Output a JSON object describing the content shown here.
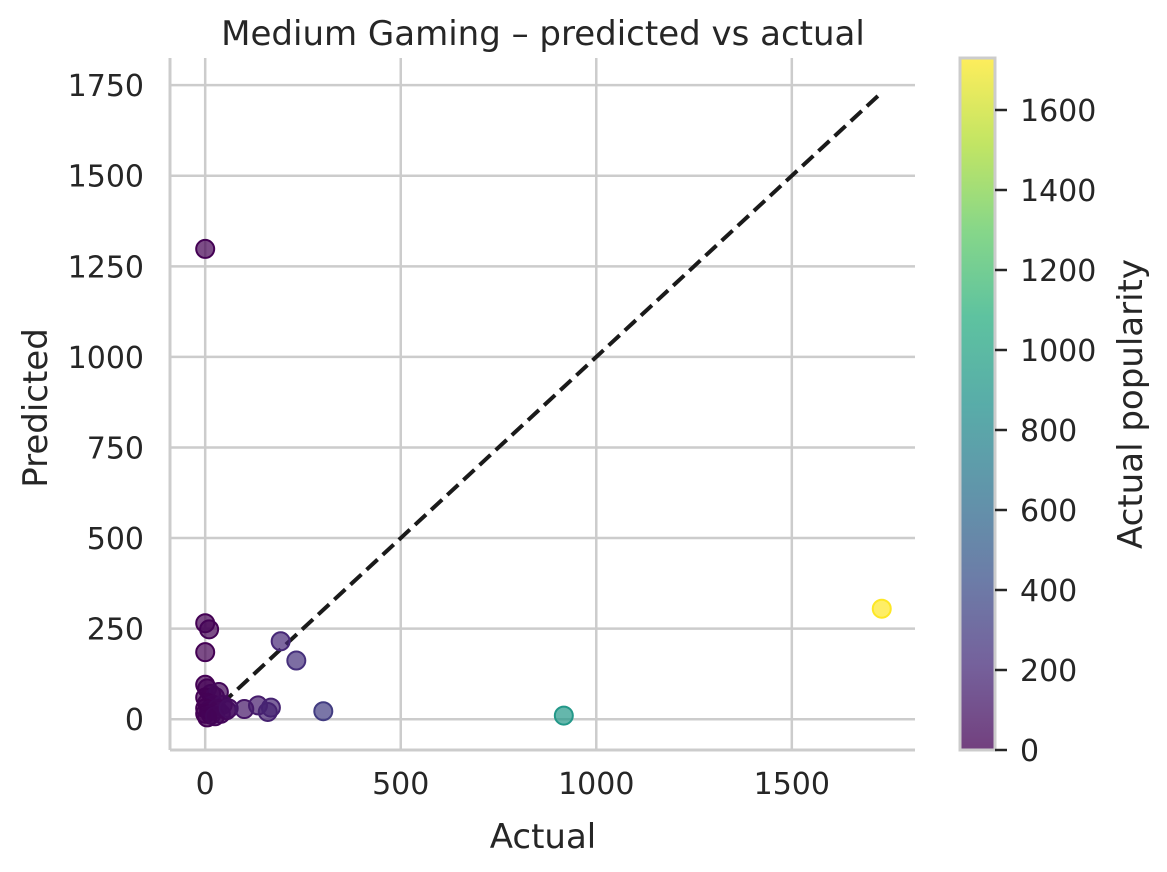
{
  "chart_data": {
    "type": "scatter",
    "title": "Medium Gaming – predicted vs actual",
    "xlabel": "Actual",
    "ylabel": "Predicted",
    "xlim": [
      -90,
      1815
    ],
    "ylim": [
      -85,
      1825
    ],
    "xticks": [
      0,
      500,
      1000,
      1500
    ],
    "yticks": [
      0,
      250,
      500,
      750,
      1000,
      1250,
      1500,
      1750
    ],
    "grid": true,
    "reference_line": {
      "style": "dashed",
      "color": "#1a1a1a",
      "from": [
        0,
        0
      ],
      "to": [
        1730,
        1730
      ]
    },
    "colorbar": {
      "label": "Actual popularity",
      "colormap": "viridis",
      "range": [
        0,
        1730
      ],
      "ticks": [
        0,
        200,
        400,
        600,
        800,
        1000,
        1200,
        1400,
        1600
      ]
    },
    "points": [
      {
        "x": 0,
        "y": 1298
      },
      {
        "x": 0,
        "y": 265
      },
      {
        "x": 10,
        "y": 248
      },
      {
        "x": 0,
        "y": 185
      },
      {
        "x": 0,
        "y": 95
      },
      {
        "x": 5,
        "y": 85
      },
      {
        "x": 15,
        "y": 70
      },
      {
        "x": 0,
        "y": 60
      },
      {
        "x": 25,
        "y": 62
      },
      {
        "x": 35,
        "y": 75
      },
      {
        "x": 5,
        "y": 45
      },
      {
        "x": 20,
        "y": 40
      },
      {
        "x": 45,
        "y": 40
      },
      {
        "x": 0,
        "y": 30
      },
      {
        "x": 10,
        "y": 25
      },
      {
        "x": 30,
        "y": 28
      },
      {
        "x": 55,
        "y": 25
      },
      {
        "x": 0,
        "y": 15
      },
      {
        "x": 15,
        "y": 12
      },
      {
        "x": 40,
        "y": 15
      },
      {
        "x": 5,
        "y": 5
      },
      {
        "x": 25,
        "y": 8
      },
      {
        "x": 60,
        "y": 30
      },
      {
        "x": 100,
        "y": 28
      },
      {
        "x": 135,
        "y": 38
      },
      {
        "x": 160,
        "y": 20
      },
      {
        "x": 168,
        "y": 32
      },
      {
        "x": 193,
        "y": 215
      },
      {
        "x": 233,
        "y": 162
      },
      {
        "x": 302,
        "y": 22
      },
      {
        "x": 917,
        "y": 10
      },
      {
        "x": 1730,
        "y": 305
      }
    ]
  }
}
